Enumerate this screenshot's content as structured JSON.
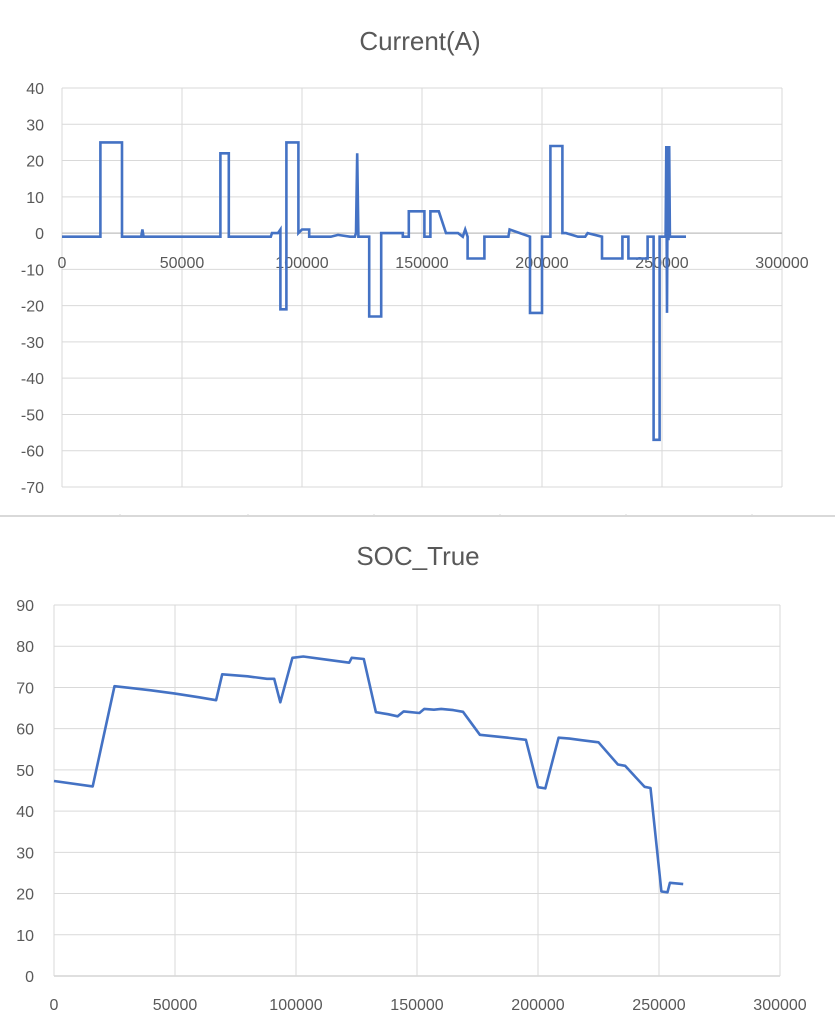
{
  "chart_data": [
    {
      "type": "line",
      "title": "Current(A)",
      "xlabel": "",
      "ylabel": "",
      "xlim": [
        0,
        300000
      ],
      "ylim": [
        -70,
        40
      ],
      "x_ticks": [
        "0",
        "50000",
        "100000",
        "150000",
        "200000",
        "250000",
        "300000"
      ],
      "y_ticks": [
        "40",
        "30",
        "20",
        "10",
        "0",
        "-10",
        "-20",
        "-30",
        "-40",
        "-50",
        "-60",
        "-70"
      ],
      "grid": true,
      "line_color": "#4472c4",
      "series": [
        {
          "x": [
            0,
            16000,
            16000,
            25000,
            25000,
            33000,
            33500,
            34000,
            55000,
            66000,
            66000,
            69500,
            69500,
            87000,
            87500,
            90000,
            91000,
            91000,
            93500,
            93500,
            98500,
            98500,
            100000,
            103000,
            103000,
            112000,
            115000,
            120000,
            122000,
            122500,
            123000,
            123500,
            128000,
            128000,
            133000,
            133000,
            134500,
            140000,
            142000,
            142000,
            144500,
            144500,
            151000,
            151000,
            153500,
            153500,
            157000,
            160000,
            165000,
            167000,
            168000,
            169000,
            169000,
            176000,
            176000,
            186000,
            186500,
            195000,
            195000,
            200000,
            200000,
            203500,
            203500,
            208500,
            208500,
            210000,
            215000,
            218000,
            219000,
            225000,
            225000,
            233500,
            233500,
            236000,
            236000,
            244000,
            244000,
            246500,
            246500,
            249000,
            249000,
            251500,
            251800,
            252100,
            252400,
            252700,
            253000,
            253300,
            253600,
            254000,
            254000,
            260000
          ],
          "y": [
            -1,
            -1,
            25,
            25,
            -1,
            -1,
            1,
            -1,
            -1,
            -1,
            22,
            22,
            -1,
            -1,
            0,
            0,
            1,
            -21,
            -21,
            25,
            25,
            0,
            1,
            1,
            -1,
            -1,
            -0.5,
            -1,
            -1,
            0,
            22,
            -1,
            -1,
            -23,
            -23,
            0,
            0,
            0,
            0,
            -1,
            -1,
            6,
            6,
            -1,
            -1,
            6,
            6,
            0,
            0,
            -1,
            1,
            -1,
            -7,
            -7,
            -1,
            -1,
            1,
            -1,
            -22,
            -22,
            -1,
            -1,
            24,
            24,
            0,
            0,
            -1,
            -1,
            0,
            -1,
            -7,
            -7,
            -1,
            -1,
            -7,
            -7,
            -1,
            -1,
            -57,
            -57,
            -1,
            -1,
            24,
            -22,
            24,
            -2,
            24,
            -1,
            -1,
            -1,
            -1,
            -1
          ]
        }
      ]
    },
    {
      "type": "line",
      "title": "SOC_True",
      "xlabel": "",
      "ylabel": "",
      "xlim": [
        0,
        300000
      ],
      "ylim": [
        0,
        90
      ],
      "x_ticks": [
        "0",
        "50000",
        "100000",
        "150000",
        "200000",
        "250000",
        "300000"
      ],
      "y_ticks": [
        "90",
        "80",
        "70",
        "60",
        "50",
        "40",
        "30",
        "20",
        "10",
        "0"
      ],
      "grid": true,
      "line_color": "#4472c4",
      "series": [
        {
          "x": [
            0,
            16000,
            25000,
            40000,
            50000,
            60000,
            67000,
            69500,
            80000,
            88000,
            91000,
            93500,
            98500,
            103000,
            112000,
            122000,
            123000,
            128000,
            133000,
            138000,
            142000,
            144500,
            151000,
            153000,
            157000,
            160000,
            165000,
            169000,
            176000,
            186000,
            195000,
            200000,
            203000,
            208500,
            213000,
            218000,
            225000,
            233000,
            236000,
            244000,
            246500,
            251000,
            253500,
            254500,
            260000
          ],
          "y": [
            47.3,
            46,
            70.3,
            69.3,
            68.5,
            67.6,
            66.9,
            73.2,
            72.7,
            72.1,
            72.1,
            66.4,
            77.2,
            77.5,
            76.8,
            76,
            77.2,
            76.9,
            64,
            63.5,
            63,
            64.2,
            63.8,
            64.8,
            64.6,
            64.8,
            64.5,
            64.1,
            58.5,
            57.9,
            57.3,
            45.8,
            45.5,
            57.8,
            57.6,
            57.2,
            56.7,
            51.3,
            51,
            45.9,
            45.6,
            20.5,
            20.3,
            22.6,
            22.3
          ]
        }
      ]
    }
  ]
}
